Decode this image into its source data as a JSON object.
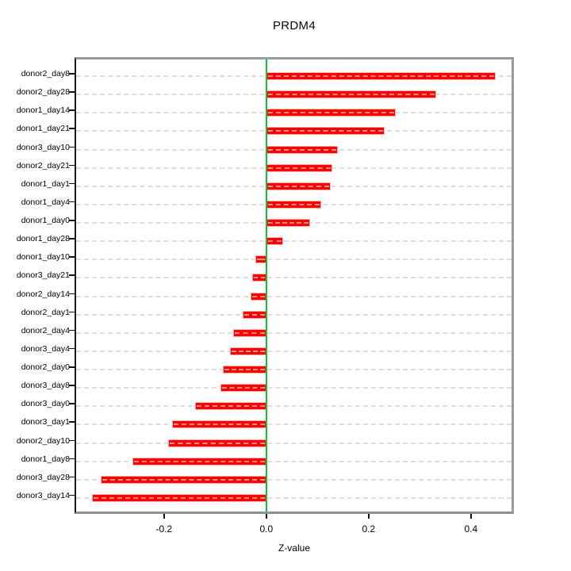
{
  "chart_data": {
    "type": "bar",
    "orientation": "horizontal",
    "title": "PRDM4",
    "xlabel": "Z-value",
    "categories": [
      "donor2_day8",
      "donor2_day28",
      "donor1_day14",
      "donor1_day21",
      "donor3_day10",
      "donor2_day21",
      "donor1_day1",
      "donor1_day4",
      "donor1_day0",
      "donor1_day28",
      "donor1_day10",
      "donor3_day21",
      "donor2_day14",
      "donor2_day1",
      "donor2_day4",
      "donor3_day4",
      "donor2_day0",
      "donor3_day8",
      "donor3_day0",
      "donor3_day1",
      "donor2_day10",
      "donor1_day8",
      "donor3_day28",
      "donor3_day14"
    ],
    "values": [
      0.452,
      0.335,
      0.256,
      0.234,
      0.142,
      0.13,
      0.128,
      0.109,
      0.086,
      0.034,
      -0.022,
      -0.028,
      -0.031,
      -0.047,
      -0.065,
      -0.071,
      -0.085,
      -0.091,
      -0.141,
      -0.185,
      -0.194,
      -0.264,
      -0.326,
      -0.344
    ],
    "x_tick_labels": [
      "-0.2",
      "0.0",
      "0.2",
      "0.4"
    ],
    "x_ticks": [
      -0.2,
      0.0,
      0.2,
      0.4
    ],
    "xlim": [
      -0.375,
      0.484
    ],
    "grid": true,
    "legend": "none",
    "colors": {
      "bar": "#ff0000",
      "bar_border": "#ffb3ab",
      "zero_line": "#00cc33",
      "gridline": "#dedede",
      "box_border": "#9a9a9a",
      "axis": "#111111"
    }
  }
}
